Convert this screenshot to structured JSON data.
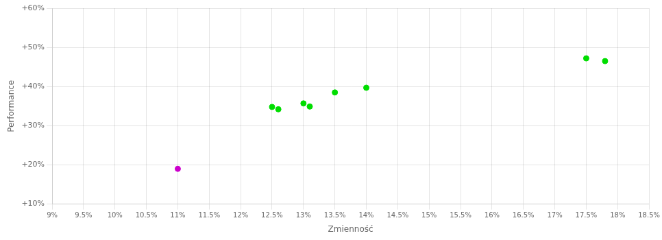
{
  "chart_data": {
    "type": "scatter",
    "xlabel": "Zmienność",
    "ylabel": "Performance",
    "xlim": [
      0.09,
      0.185
    ],
    "ylim": [
      0.1,
      0.6
    ],
    "xticks": [
      {
        "value": 0.09,
        "label": "9%"
      },
      {
        "value": 0.095,
        "label": "9.5%"
      },
      {
        "value": 0.1,
        "label": "10%"
      },
      {
        "value": 0.105,
        "label": "10.5%"
      },
      {
        "value": 0.11,
        "label": "11%"
      },
      {
        "value": 0.115,
        "label": "11.5%"
      },
      {
        "value": 0.12,
        "label": "12%"
      },
      {
        "value": 0.125,
        "label": "12.5%"
      },
      {
        "value": 0.13,
        "label": "13%"
      },
      {
        "value": 0.135,
        "label": "13.5%"
      },
      {
        "value": 0.14,
        "label": "14%"
      },
      {
        "value": 0.145,
        "label": "14.5%"
      },
      {
        "value": 0.15,
        "label": "15%"
      },
      {
        "value": 0.155,
        "label": "15.5%"
      },
      {
        "value": 0.16,
        "label": "16%"
      },
      {
        "value": 0.165,
        "label": "16.5%"
      },
      {
        "value": 0.17,
        "label": "17%"
      },
      {
        "value": 0.175,
        "label": "17.5%"
      },
      {
        "value": 0.18,
        "label": "18%"
      },
      {
        "value": 0.185,
        "label": "18.5%"
      }
    ],
    "yticks": [
      {
        "value": 0.1,
        "label": "+10%"
      },
      {
        "value": 0.2,
        "label": "+20%"
      },
      {
        "value": 0.3,
        "label": "+30%"
      },
      {
        "value": 0.4,
        "label": "+40%"
      },
      {
        "value": 0.5,
        "label": "+50%"
      },
      {
        "value": 0.6,
        "label": "+60%"
      }
    ],
    "grid": true,
    "series": [
      {
        "color": "#00dd00",
        "x": [
          0.125,
          0.126,
          0.13,
          0.131,
          0.135,
          0.14,
          0.175,
          0.178
        ],
        "values": [
          0.348,
          0.342,
          0.357,
          0.349,
          0.385,
          0.397,
          0.472,
          0.465
        ]
      },
      {
        "color": "#cc00cc",
        "x": [
          0.11
        ],
        "values": [
          0.19
        ]
      }
    ]
  }
}
